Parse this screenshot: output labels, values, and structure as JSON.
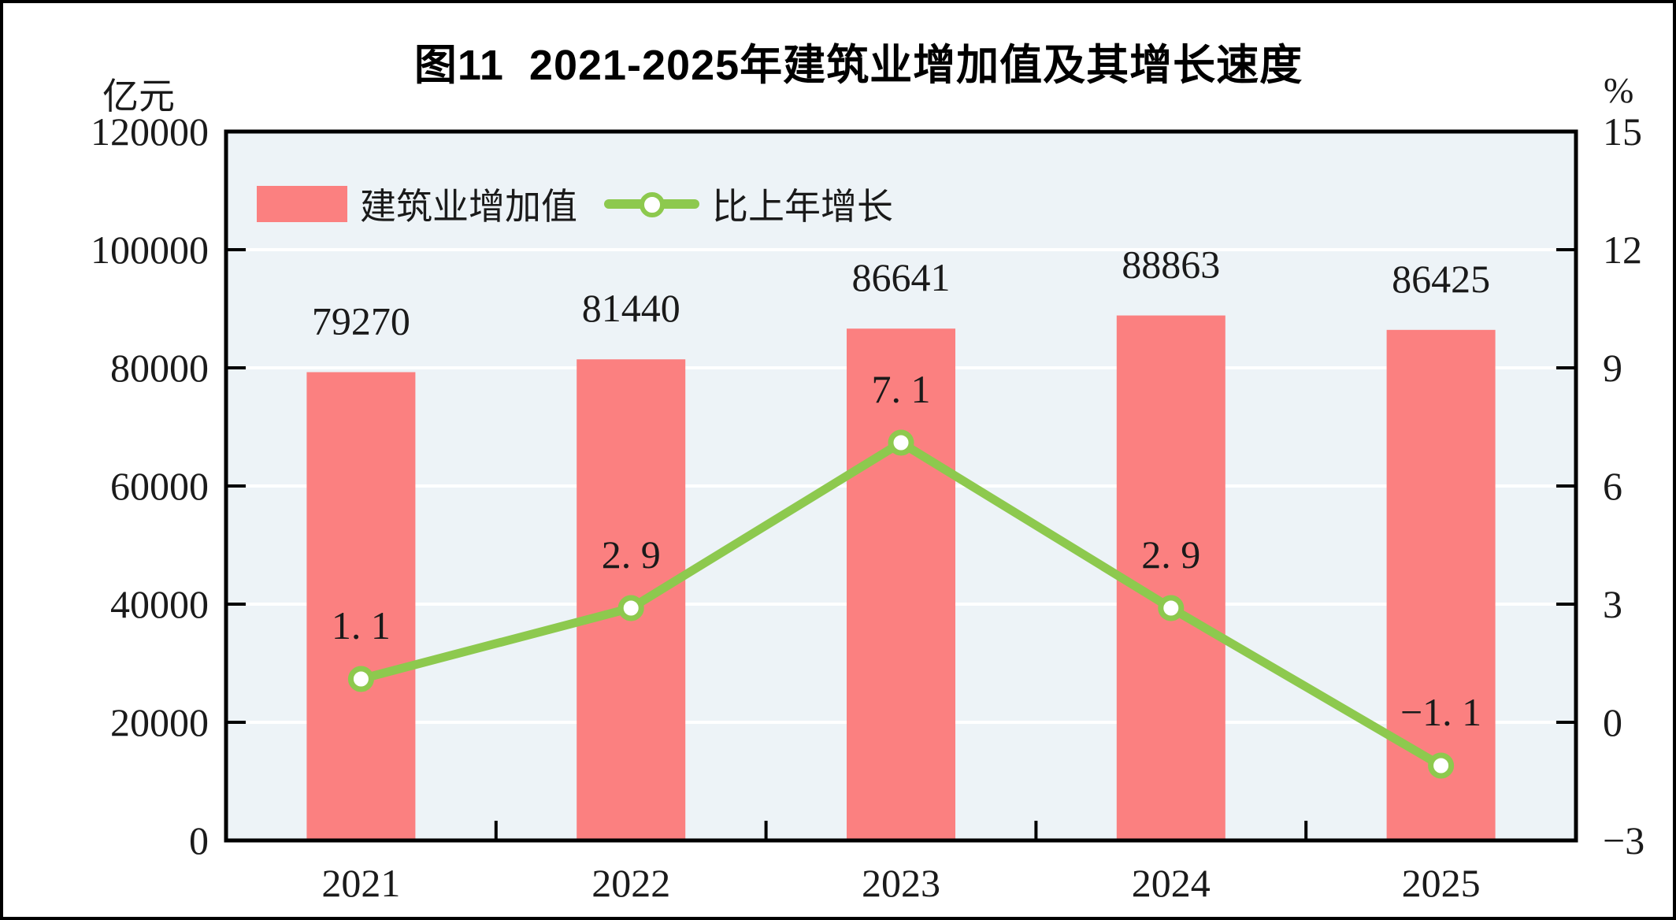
{
  "figure": {
    "title": "图11  2021-2025年建筑业增加值及其增长速度",
    "left_unit": "亿元",
    "right_unit": "%"
  },
  "legend": [
    {
      "label": "建筑业增加值",
      "type": "bar",
      "color": "#FB8080"
    },
    {
      "label": "比上年增长",
      "type": "line",
      "color": "#8DC94E"
    }
  ],
  "chart_data": {
    "type": "bar+line combo",
    "categories": [
      "2021",
      "2022",
      "2023",
      "2024",
      "2025"
    ],
    "series": [
      {
        "name": "建筑业增加值",
        "type": "bar",
        "axis": "left",
        "values": [
          79270,
          81440,
          86641,
          88863,
          86425
        ],
        "labels": [
          "79270",
          "81440",
          "86641",
          "88863",
          "86425"
        ],
        "color": "#FB8080"
      },
      {
        "name": "比上年增长",
        "type": "line",
        "axis": "right",
        "values": [
          1.1,
          2.9,
          7.1,
          2.9,
          -1.1
        ],
        "labels": [
          "1. 1",
          "2. 9",
          "7. 1",
          "2. 9",
          "−1. 1"
        ],
        "color": "#8DC94E",
        "marker": {
          "shape": "circle",
          "fill": "#FFFFFF",
          "stroke": "#8DC94E"
        }
      }
    ],
    "left_axis": {
      "label": "亿元",
      "min": 0,
      "max": 120000,
      "step": 20000,
      "ticks": [
        "0",
        "20000",
        "40000",
        "60000",
        "80000",
        "100000",
        "120000"
      ]
    },
    "right_axis": {
      "label": "%",
      "min": -3,
      "max": 15,
      "step": 3,
      "ticks": [
        "−3",
        "0",
        "3",
        "6",
        "9",
        "12",
        "15"
      ]
    },
    "grid": true,
    "grid_color": "#FFFFFF",
    "plot_bg": "#EDF3F7",
    "frame_color": "#000000",
    "text_color": "#1A1A1A",
    "legend_position": "top-left-inside"
  }
}
